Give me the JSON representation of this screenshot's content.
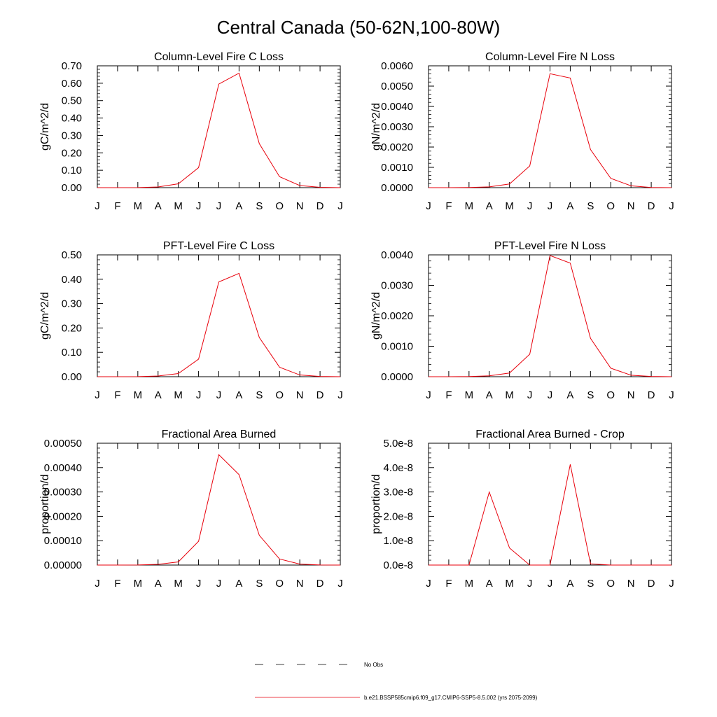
{
  "figure": {
    "title": "Central Canada (50-62N,100-80W)"
  },
  "months": [
    "J",
    "F",
    "M",
    "A",
    "M",
    "J",
    "J",
    "A",
    "S",
    "O",
    "N",
    "D",
    "J"
  ],
  "colors": {
    "series": "#e8000b",
    "axes": "#000000",
    "obs_line": "#000000"
  },
  "legend": {
    "placement": "bottom-center",
    "entries": [
      {
        "label": "No Obs",
        "style": "dashed",
        "color": "#000000"
      },
      {
        "label": "b.e21.BSSP585cmip6.f09_g17.CMIP6-SSP5-8.5.002 (yrs 2075-2099)",
        "style": "solid",
        "color": "#e8000b"
      }
    ]
  },
  "chart_data": [
    {
      "type": "line",
      "title": "Column-Level Fire C Loss",
      "ylabel": "gC/m^2/d",
      "ylim": [
        0,
        0.7
      ],
      "yticks": [
        "0.00",
        "0.10",
        "0.20",
        "0.30",
        "0.40",
        "0.50",
        "0.60",
        "0.70"
      ],
      "grid": false,
      "x": [
        1,
        2,
        3,
        4,
        5,
        6,
        7,
        8,
        9,
        10,
        11,
        12,
        13
      ],
      "series": [
        {
          "values": [
            0.0,
            0.0,
            0.0005,
            0.004,
            0.022,
            0.115,
            0.595,
            0.658,
            0.253,
            0.063,
            0.012,
            0.002,
            0.0
          ]
        }
      ]
    },
    {
      "type": "line",
      "title": "Column-Level Fire N Loss",
      "ylabel": "gN/m^2/d",
      "ylim": [
        0,
        0.006
      ],
      "yticks": [
        "0.0000",
        "0.0010",
        "0.0020",
        "0.0030",
        "0.0040",
        "0.0050",
        "0.0060"
      ],
      "grid": false,
      "x": [
        1,
        2,
        3,
        4,
        5,
        6,
        7,
        8,
        9,
        10,
        11,
        12,
        13
      ],
      "series": [
        {
          "values": [
            0.0,
            0.0,
            1e-05,
            4e-05,
            0.00018,
            0.00107,
            0.00561,
            0.0054,
            0.00188,
            0.00046,
            9e-05,
            1e-05,
            0.0
          ]
        }
      ]
    },
    {
      "type": "line",
      "title": "PFT-Level Fire C Loss",
      "ylabel": "gC/m^2/d",
      "ylim": [
        0,
        0.5
      ],
      "yticks": [
        "0.00",
        "0.10",
        "0.20",
        "0.30",
        "0.40",
        "0.50"
      ],
      "grid": false,
      "x": [
        1,
        2,
        3,
        4,
        5,
        6,
        7,
        8,
        9,
        10,
        11,
        12,
        13
      ],
      "series": [
        {
          "values": [
            0.0,
            0.0,
            0.0004,
            0.003,
            0.013,
            0.072,
            0.389,
            0.424,
            0.161,
            0.039,
            0.007,
            0.001,
            0.0
          ]
        }
      ]
    },
    {
      "type": "line",
      "title": "PFT-Level Fire N Loss",
      "ylabel": "gN/m^2/d",
      "ylim": [
        0,
        0.004
      ],
      "yticks": [
        "0.0000",
        "0.0010",
        "0.0020",
        "0.0030",
        "0.0040"
      ],
      "grid": false,
      "x": [
        1,
        2,
        3,
        4,
        5,
        6,
        7,
        8,
        9,
        10,
        11,
        12,
        13
      ],
      "series": [
        {
          "values": [
            0.0,
            0.0,
            5e-06,
            3e-05,
            0.00012,
            0.00074,
            0.00398,
            0.00373,
            0.00126,
            0.00028,
            5e-05,
            1e-05,
            0.0
          ]
        }
      ]
    },
    {
      "type": "line",
      "title": "Fractional Area Burned",
      "ylabel": "proportion/d",
      "ylim": [
        0,
        0.0005
      ],
      "yticks": [
        "0.00000",
        "0.00010",
        "0.00020",
        "0.00030",
        "0.00040",
        "0.00050"
      ],
      "grid": false,
      "x": [
        1,
        2,
        3,
        4,
        5,
        6,
        7,
        8,
        9,
        10,
        11,
        12,
        13
      ],
      "series": [
        {
          "values": [
            0.0,
            0.0,
            5e-07,
            3e-06,
            1.3e-05,
            9.75e-05,
            0.000453,
            0.000371,
            0.000122,
            2.5e-05,
            4e-06,
            5e-07,
            0.0
          ]
        }
      ]
    },
    {
      "type": "line",
      "title": "Fractional Area Burned - Crop",
      "ylabel": "proportion/d",
      "ylim": [
        0,
        5e-08
      ],
      "yticks": [
        "0.0e-8",
        "1.0e-8",
        "2.0e-8",
        "3.0e-8",
        "4.0e-8",
        "5.0e-8"
      ],
      "grid": false,
      "x": [
        1,
        2,
        3,
        4,
        5,
        6,
        7,
        8,
        9,
        10,
        11,
        12,
        13
      ],
      "series": [
        {
          "values": [
            0.0,
            0.0,
            0.0,
            3e-08,
            7e-09,
            0.0,
            0.0,
            4.13e-08,
            5e-10,
            0.0,
            0.0,
            0.0,
            0.0
          ]
        }
      ]
    }
  ]
}
